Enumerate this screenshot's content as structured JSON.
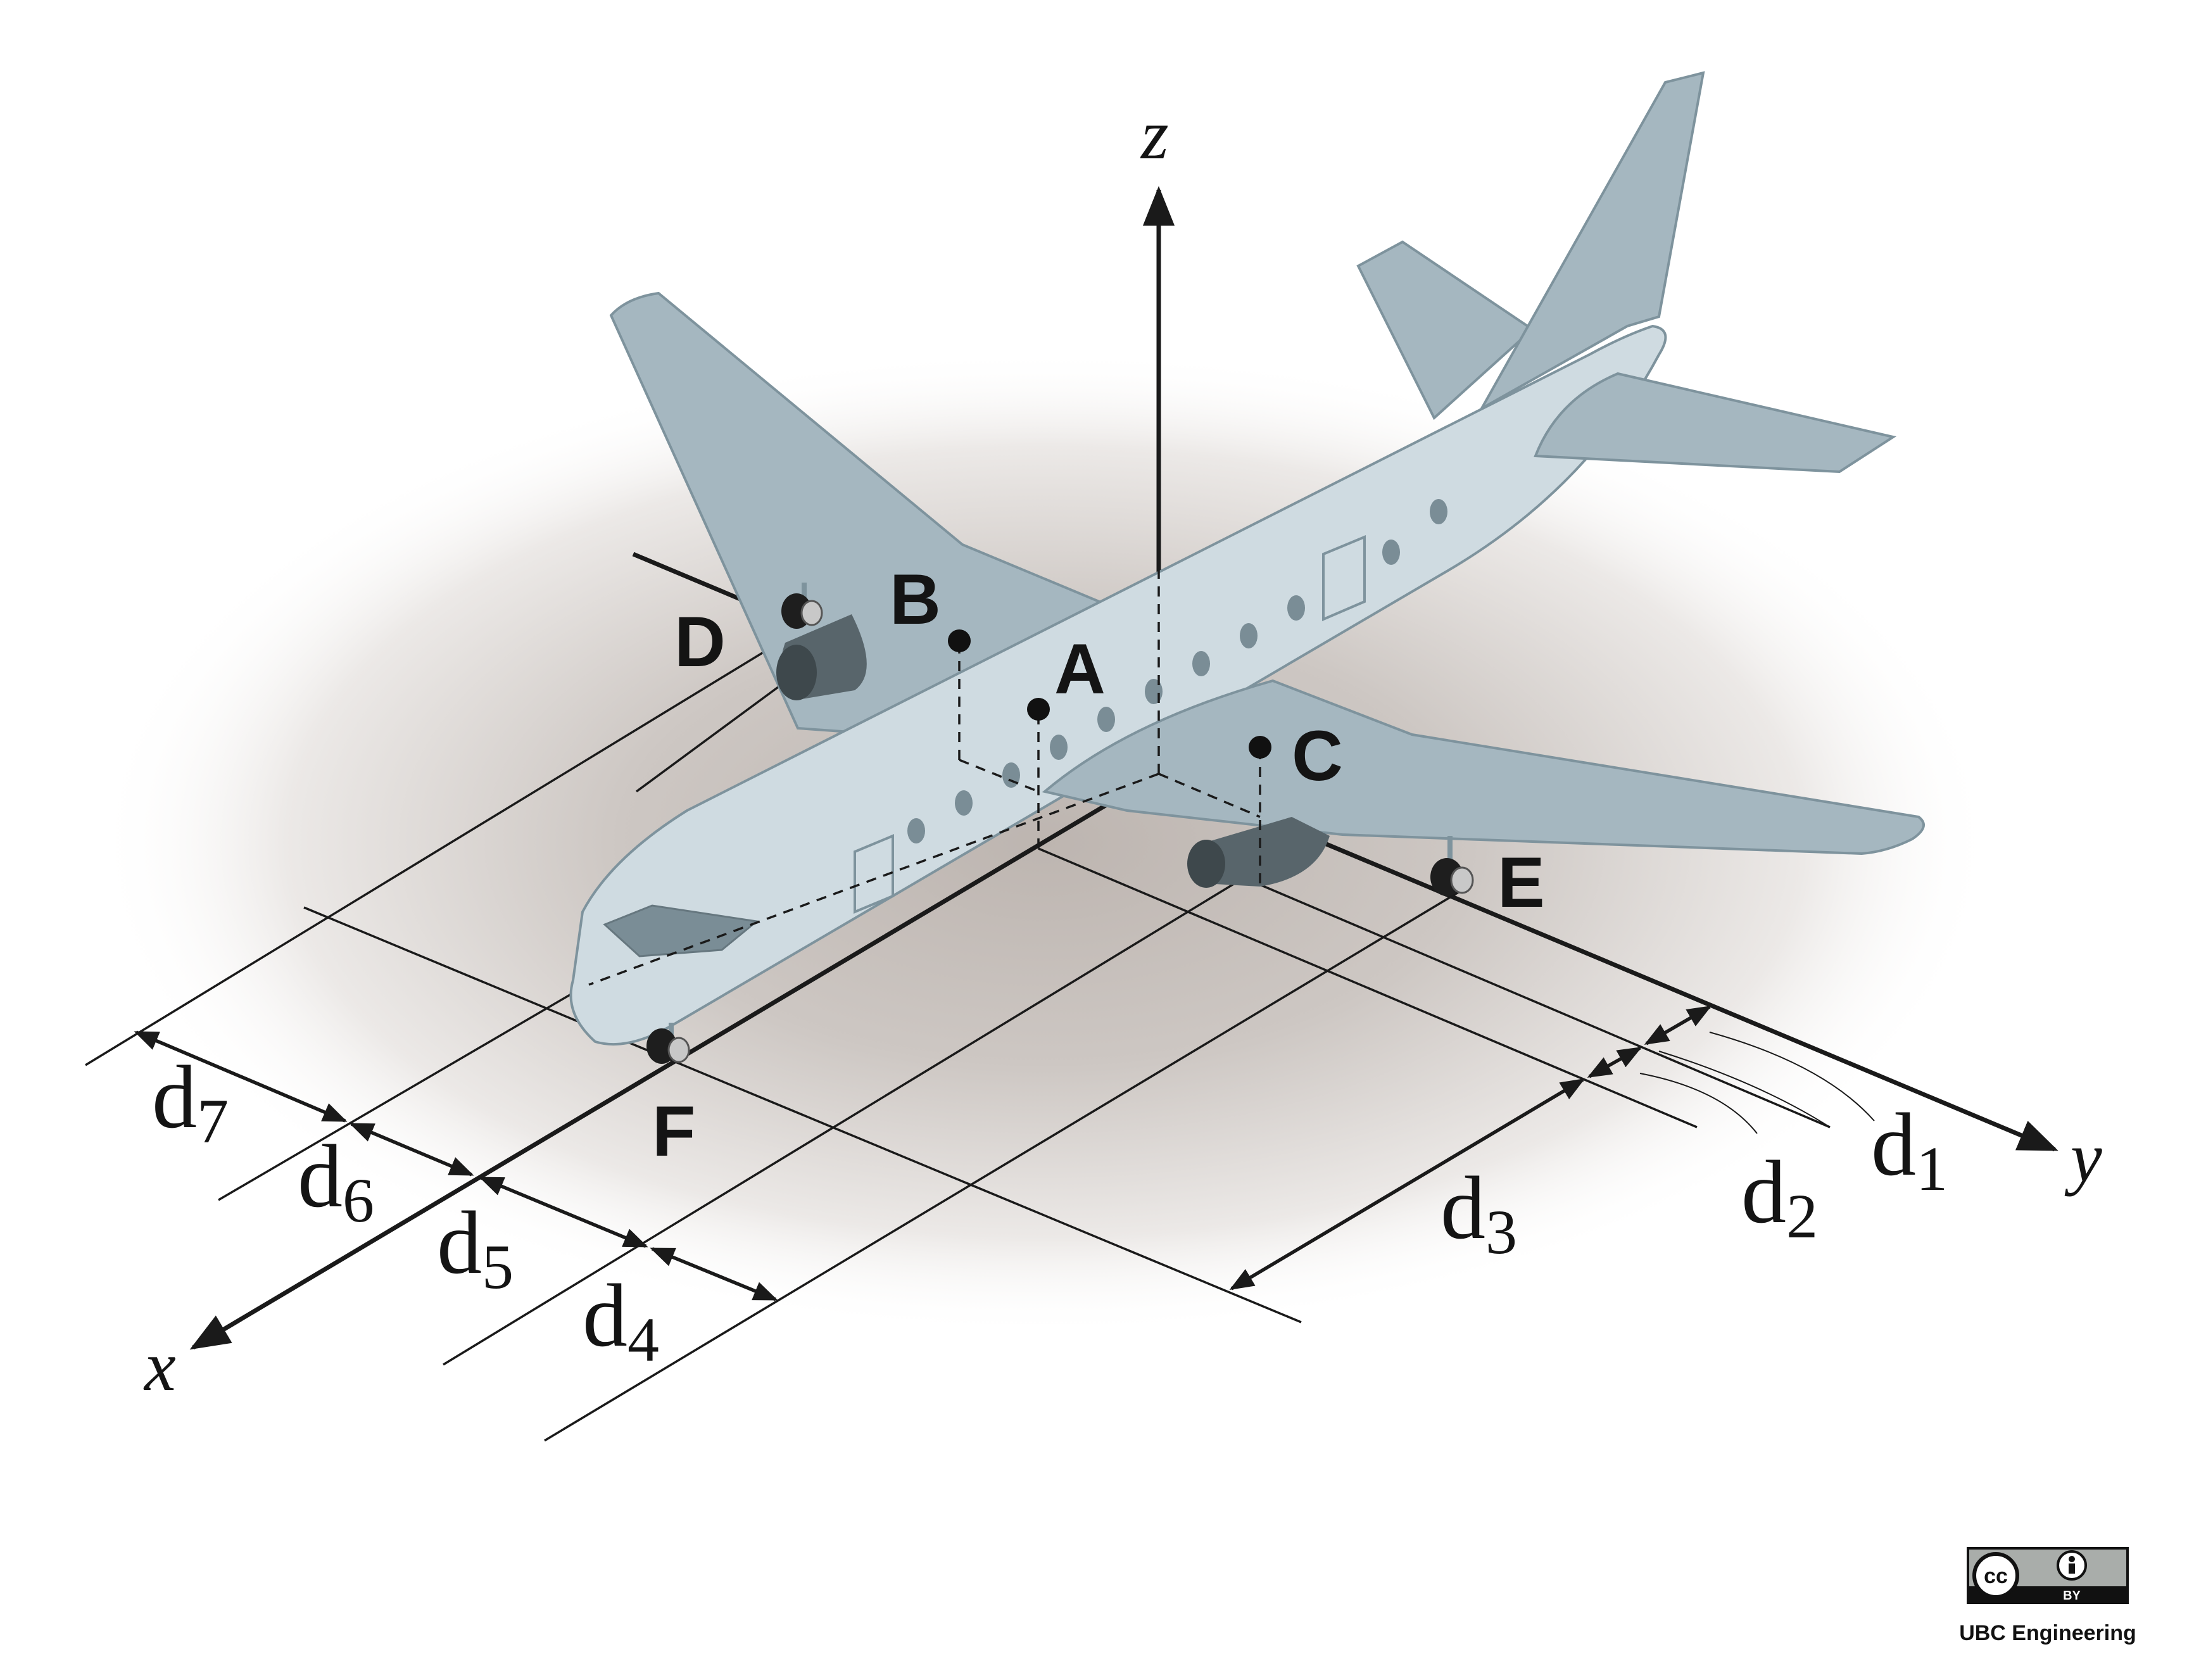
{
  "axes": {
    "x": "x",
    "y": "y",
    "z": "z"
  },
  "points": {
    "A": "A",
    "B": "B",
    "C": "C",
    "D": "D",
    "E": "E",
    "F": "F"
  },
  "dimensions": {
    "d1": {
      "base": "d",
      "sub": "1"
    },
    "d2": {
      "base": "d",
      "sub": "2"
    },
    "d3": {
      "base": "d",
      "sub": "3"
    },
    "d4": {
      "base": "d",
      "sub": "4"
    },
    "d5": {
      "base": "d",
      "sub": "5"
    },
    "d6": {
      "base": "d",
      "sub": "6"
    },
    "d7": {
      "base": "d",
      "sub": "7"
    }
  },
  "license": {
    "cc_mark": "cc",
    "by_mark": "BY",
    "credit": "UBC Engineering"
  },
  "colors": {
    "wing": "#a5b7c0",
    "fuselage": "#cfdbe1",
    "ground_shadow": "#c9c3bf",
    "engine": "#58656b"
  }
}
